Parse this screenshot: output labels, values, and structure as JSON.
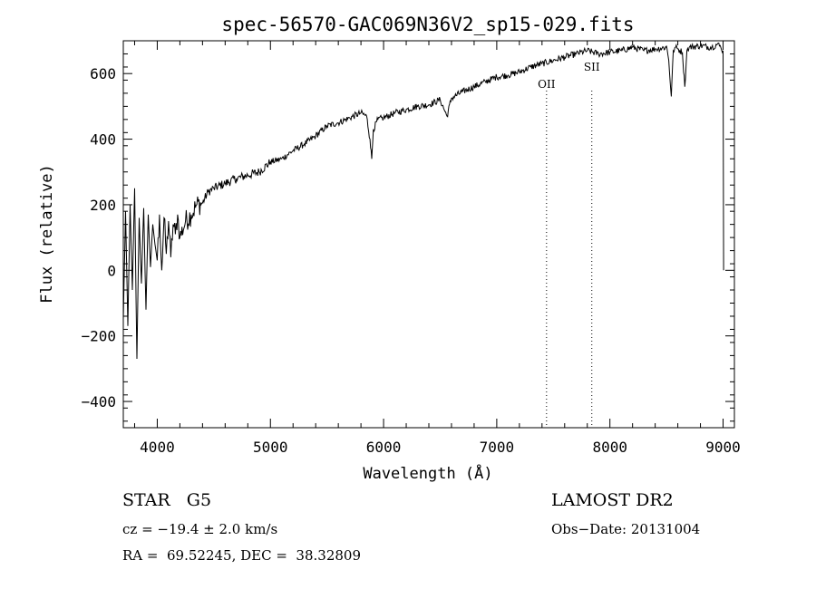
{
  "chart_data": {
    "type": "line",
    "title": "spec-56570-GAC069N36V2_sp15-029.fits",
    "xlabel": "Wavelength (Å)",
    "ylabel": "Flux (relative)",
    "xlim": [
      3700,
      9100
    ],
    "ylim": [
      -480,
      700
    ],
    "x_ticks": [
      4000,
      5000,
      6000,
      7000,
      8000,
      9000
    ],
    "y_ticks": [
      -400,
      -200,
      0,
      200,
      400,
      600
    ],
    "x_tick_labels": [
      "4000",
      "5000",
      "6000",
      "7000",
      "8000",
      "9000"
    ],
    "y_tick_labels": [
      "−400",
      "−200",
      "0",
      "200",
      "400",
      "600"
    ],
    "grid": false,
    "series": [
      {
        "x": [
          3700,
          3720,
          3740,
          3760,
          3780,
          3800,
          3820,
          3840,
          3860,
          3880,
          3900,
          3920,
          3940,
          3960,
          3980,
          4000,
          4020,
          4040,
          4060,
          4080,
          4100,
          4120,
          4140,
          4160,
          4180,
          4200,
          4250,
          4300,
          4350,
          4400,
          4450,
          4500,
          4600,
          4700,
          4800,
          4900,
          5000,
          5100,
          5200,
          5300,
          5400,
          5500,
          5600,
          5700,
          5800,
          5850,
          5880,
          5895,
          5910,
          5950,
          6000,
          6100,
          6200,
          6300,
          6400,
          6500,
          6560,
          6600,
          6700,
          6800,
          6900,
          7000,
          7100,
          7200,
          7300,
          7400,
          7500,
          7600,
          7700,
          7800,
          7900,
          8000,
          8100,
          8200,
          8300,
          8400,
          8498,
          8500,
          8520,
          8542,
          8560,
          8580,
          8600,
          8640,
          8662,
          8680,
          8700,
          8800,
          8900,
          8950,
          8980,
          9000,
          9005
        ],
        "y": [
          -150,
          180,
          -170,
          200,
          -60,
          250,
          -270,
          160,
          -40,
          190,
          -120,
          170,
          10,
          140,
          80,
          30,
          170,
          0,
          160,
          50,
          150,
          40,
          140,
          110,
          170,
          100,
          150,
          170,
          200,
          205,
          240,
          250,
          265,
          280,
          290,
          300,
          330,
          340,
          365,
          385,
          410,
          440,
          450,
          465,
          480,
          470,
          400,
          340,
          430,
          460,
          465,
          480,
          490,
          500,
          505,
          520,
          470,
          525,
          545,
          560,
          575,
          590,
          595,
          605,
          620,
          630,
          640,
          650,
          660,
          670,
          660,
          665,
          670,
          680,
          670,
          675,
          680,
          685,
          640,
          530,
          670,
          680,
          675,
          665,
          560,
          670,
          680,
          685,
          680,
          690,
          680,
          670,
          0
        ]
      }
    ],
    "annotations": [
      {
        "text": "OII",
        "x": 7440
      },
      {
        "text": "SII",
        "x": 7840
      }
    ]
  },
  "info": {
    "object_type": "STAR   G5",
    "survey": "LAMOST DR2",
    "cz": "cz = −19.4 ± 2.0 km/s",
    "obs_date": "Obs−Date: 20131004",
    "coords": "RA =  69.52245, DEC =  38.32809"
  }
}
